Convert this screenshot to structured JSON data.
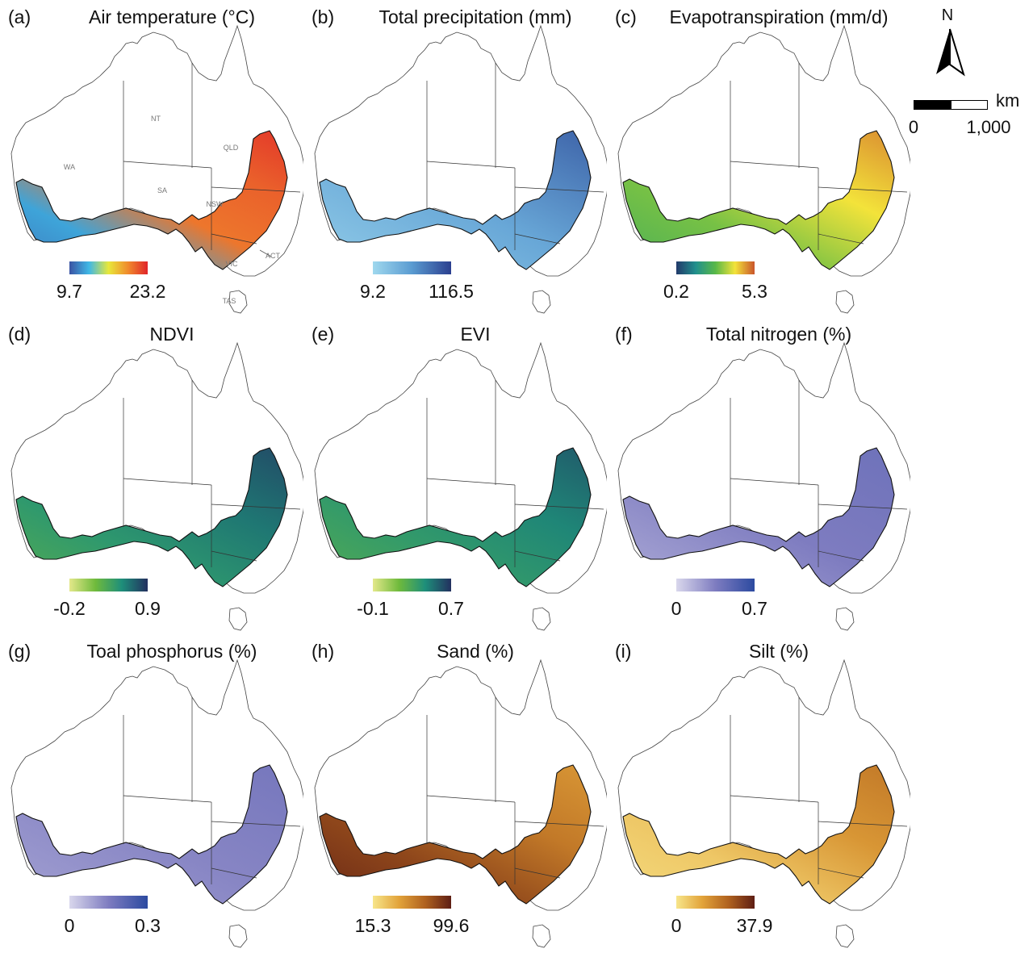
{
  "state_labels": [
    "WA",
    "NT",
    "SA",
    "QLD",
    "NSW",
    "VIC",
    "ACT",
    "TAS"
  ],
  "north_arrow": {
    "letter": "N",
    "icon": "north-arrow-icon"
  },
  "scale_bar": {
    "unit": "km",
    "start": "0",
    "end": "1,000"
  },
  "panels": [
    {
      "letter": "(a)",
      "title": "Air temperature (°C)",
      "min": "9.7",
      "max": "23.2",
      "colors": [
        "#3b53a3",
        "#3fb8e6",
        "#e8e83a",
        "#f08a2c",
        "#e0242a"
      ],
      "ramp": [
        0.1,
        0.2,
        0.8,
        0.85,
        0.95
      ]
    },
    {
      "letter": "(b)",
      "title": "Total precipitation (mm)",
      "min": "9.2",
      "max": "116.5",
      "colors": [
        "#9fd8ee",
        "#5a9bd1",
        "#2b3f8f"
      ],
      "ramp": [
        0.1,
        0.4,
        0.8
      ]
    },
    {
      "letter": "(c)",
      "title": "Evapotranspiration (mm/d)",
      "min": "0.2",
      "max": "5.3",
      "colors": [
        "#223a6b",
        "#21908d",
        "#58b848",
        "#f3e33a",
        "#c9552b"
      ],
      "ramp": [
        0.45,
        0.55,
        0.75,
        0.9
      ]
    },
    {
      "letter": "(d)",
      "title": "NDVI",
      "min": "-0.2",
      "max": "0.9",
      "colors": [
        "#e3e88a",
        "#6fba3c",
        "#1e8f7a",
        "#23305f"
      ],
      "ramp": [
        0.45,
        0.6,
        0.75,
        0.9
      ]
    },
    {
      "letter": "(e)",
      "title": "EVI",
      "min": "-0.1",
      "max": "0.7",
      "colors": [
        "#e3e88a",
        "#6fba3c",
        "#1e8f7a",
        "#23305f"
      ],
      "ramp": [
        0.45,
        0.58,
        0.7,
        0.85
      ]
    },
    {
      "letter": "(f)",
      "title": "Total nitrogen (%)",
      "min": "0",
      "max": "0.7",
      "colors": [
        "#d9d7ec",
        "#7e7cc0",
        "#2c4aa0"
      ],
      "ramp": [
        0.25,
        0.5,
        0.6
      ]
    },
    {
      "letter": "(g)",
      "title": "Toal phosphorus (%)",
      "min": "0",
      "max": "0.3",
      "colors": [
        "#d9d7ec",
        "#7e7cc0",
        "#2c4aa0"
      ],
      "ramp": [
        0.3,
        0.45,
        0.55
      ]
    },
    {
      "letter": "(h)",
      "title": "Sand (%)",
      "min": "15.3",
      "max": "99.6",
      "colors": [
        "#f7e58a",
        "#e2a33a",
        "#b0621f",
        "#5e1e14"
      ],
      "ramp": [
        0.95,
        0.8,
        0.55,
        0.4
      ]
    },
    {
      "letter": "(i)",
      "title": "Silt (%)",
      "min": "0",
      "max": "37.9",
      "colors": [
        "#f7e58a",
        "#e2a33a",
        "#b0621f",
        "#5e1e14"
      ],
      "ramp": [
        0.05,
        0.15,
        0.4,
        0.55
      ]
    }
  ]
}
